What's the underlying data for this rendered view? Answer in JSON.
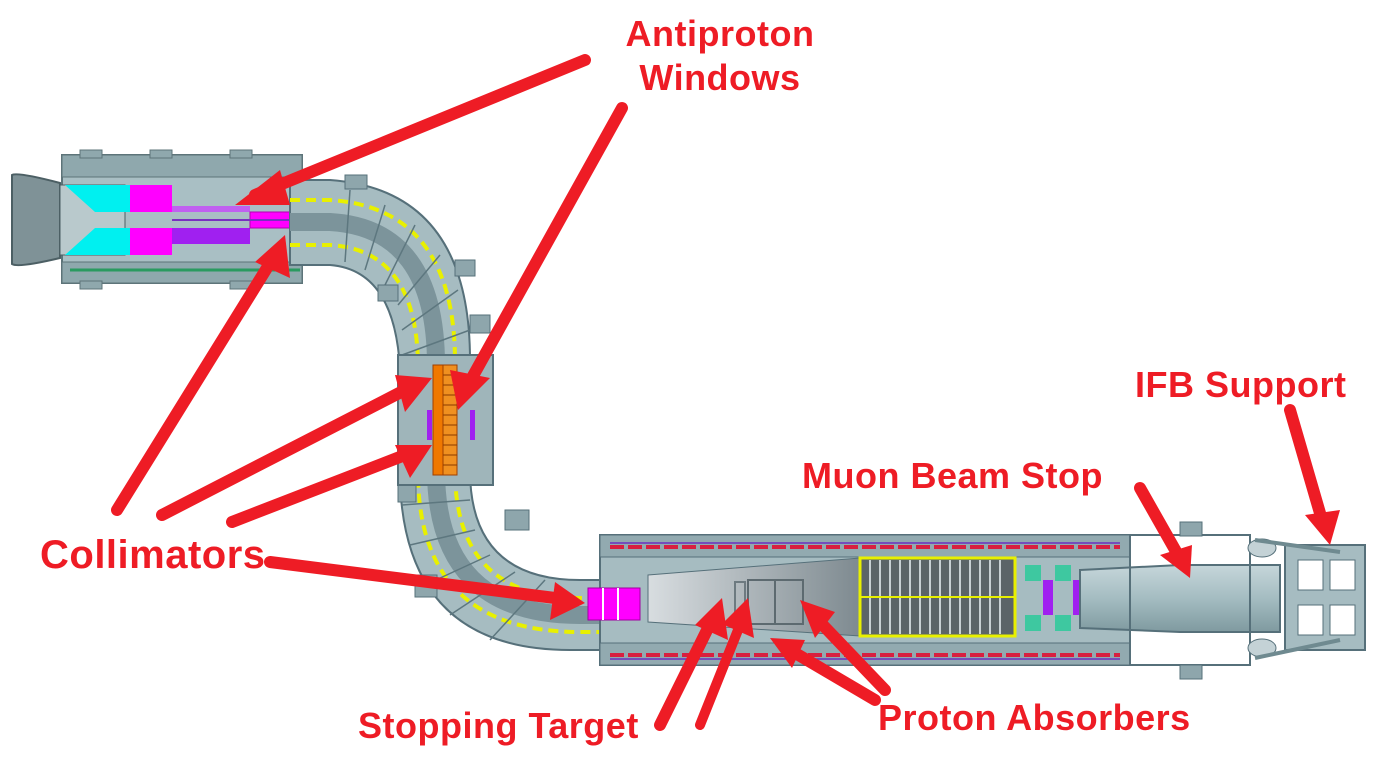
{
  "labels": {
    "antiproton_windows_line1": "Antiproton",
    "antiproton_windows_line2": "Windows",
    "collimators": "Collimators",
    "ifb_support": "IFB Support",
    "muon_beam_stop": "Muon Beam Stop",
    "stopping_target": "Stopping Target",
    "proton_absorbers": "Proton Absorbers"
  },
  "colors": {
    "callout": "#ee1c25",
    "steel": "#a7bdc2",
    "steel_dark": "#6f8a90",
    "cyan": "#00f0f0",
    "magenta": "#ff00ff",
    "purple": "#a020f0",
    "yellow": "#e8f000",
    "orange": "#f07800",
    "coil_red": "#d82040"
  }
}
